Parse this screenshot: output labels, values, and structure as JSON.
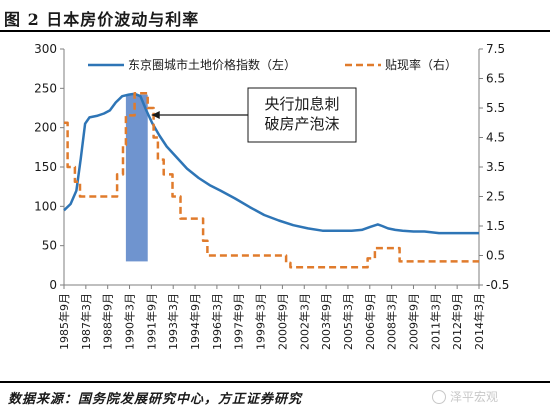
{
  "figure": {
    "title": "图 2  日本房价波动与利率",
    "source": "数据来源：国务院发展研究中心，方正证券研究",
    "watermark": "泽平宏观"
  },
  "colors": {
    "price_line": "#2e75b6",
    "rate_line": "#e07b2c",
    "shade": "#6f94cf"
  },
  "chart_data": {
    "type": "line",
    "x_tick_labels": [
      "1985年9月",
      "1987年3月",
      "1988年9月",
      "1990年3月",
      "1991年9月",
      "1993年3月",
      "1994年9月",
      "1996年3月",
      "1997年9月",
      "1999年3月",
      "2000年9月",
      "2002年3月",
      "2003年9月",
      "2005年3月",
      "2006年9月",
      "2008年3月",
      "2009年9月",
      "2011年3月",
      "2012年9月",
      "2014年3月"
    ],
    "y_left": {
      "ticks": [
        0,
        50,
        100,
        150,
        200,
        250,
        300
      ],
      "range": [
        0,
        300
      ]
    },
    "y_right": {
      "ticks": [
        -0.5,
        0.5,
        1.5,
        2.5,
        3.5,
        4.5,
        5.5,
        6.5,
        7.5
      ],
      "range": [
        -0.5,
        7.5
      ]
    },
    "annotation": {
      "lines": [
        "央行加息刺",
        "破房产泡沫"
      ],
      "shaded_range": [
        1990.0,
        1991.5
      ]
    },
    "series": [
      {
        "name": "东京圈城市土地价格指数（左）",
        "axis": "left",
        "style": "solid",
        "points": [
          [
            1985.75,
            95
          ],
          [
            1986.2,
            103
          ],
          [
            1986.6,
            120
          ],
          [
            1986.9,
            160
          ],
          [
            1987.2,
            205
          ],
          [
            1987.5,
            213
          ],
          [
            1988.0,
            215
          ],
          [
            1988.5,
            218
          ],
          [
            1988.9,
            222
          ],
          [
            1989.3,
            232
          ],
          [
            1989.75,
            240
          ],
          [
            1990.2,
            242
          ],
          [
            1990.6,
            243
          ],
          [
            1991.0,
            240
          ],
          [
            1991.4,
            222
          ],
          [
            1991.8,
            206
          ],
          [
            1992.3,
            190
          ],
          [
            1992.8,
            176
          ],
          [
            1993.5,
            162
          ],
          [
            1994.2,
            148
          ],
          [
            1995.0,
            136
          ],
          [
            1995.75,
            127
          ],
          [
            1996.5,
            120
          ],
          [
            1997.5,
            110
          ],
          [
            1998.5,
            99
          ],
          [
            1999.5,
            89
          ],
          [
            2000.5,
            82
          ],
          [
            2001.5,
            76
          ],
          [
            2002.5,
            72
          ],
          [
            2003.5,
            69
          ],
          [
            2004.5,
            69
          ],
          [
            2005.5,
            69
          ],
          [
            2006.2,
            70
          ],
          [
            2006.8,
            74
          ],
          [
            2007.3,
            77
          ],
          [
            2007.6,
            75
          ],
          [
            2008.0,
            72
          ],
          [
            2008.5,
            70
          ],
          [
            2009.0,
            69
          ],
          [
            2009.75,
            68
          ],
          [
            2010.5,
            68
          ],
          [
            2011.5,
            66
          ],
          [
            2012.5,
            66
          ],
          [
            2013.5,
            66
          ],
          [
            2014.25,
            66
          ]
        ]
      },
      {
        "name": "贴现率（右）",
        "axis": "right",
        "style": "dashed",
        "points": [
          [
            1985.75,
            5.0
          ],
          [
            1986.0,
            5.0
          ],
          [
            1986.0,
            3.5
          ],
          [
            1986.5,
            3.5
          ],
          [
            1986.5,
            3.0
          ],
          [
            1986.85,
            3.0
          ],
          [
            1986.85,
            2.5
          ],
          [
            1989.4,
            2.5
          ],
          [
            1989.4,
            3.25
          ],
          [
            1989.8,
            3.25
          ],
          [
            1989.8,
            4.25
          ],
          [
            1990.0,
            4.25
          ],
          [
            1990.0,
            5.25
          ],
          [
            1990.6,
            5.25
          ],
          [
            1990.6,
            6.0
          ],
          [
            1991.5,
            6.0
          ],
          [
            1991.5,
            5.5
          ],
          [
            1991.9,
            5.5
          ],
          [
            1991.9,
            4.5
          ],
          [
            1992.2,
            4.5
          ],
          [
            1992.2,
            3.75
          ],
          [
            1992.6,
            3.75
          ],
          [
            1992.6,
            3.25
          ],
          [
            1993.2,
            3.25
          ],
          [
            1993.2,
            2.5
          ],
          [
            1993.75,
            2.5
          ],
          [
            1993.75,
            1.75
          ],
          [
            1995.3,
            1.75
          ],
          [
            1995.3,
            1.0
          ],
          [
            1995.6,
            1.0
          ],
          [
            1995.6,
            0.5
          ],
          [
            2001.0,
            0.5
          ],
          [
            2001.0,
            0.25
          ],
          [
            2001.3,
            0.25
          ],
          [
            2001.3,
            0.1
          ],
          [
            2006.6,
            0.1
          ],
          [
            2006.6,
            0.4
          ],
          [
            2007.1,
            0.4
          ],
          [
            2007.1,
            0.75
          ],
          [
            2008.8,
            0.75
          ],
          [
            2008.8,
            0.3
          ],
          [
            2014.25,
            0.3
          ]
        ]
      }
    ]
  }
}
